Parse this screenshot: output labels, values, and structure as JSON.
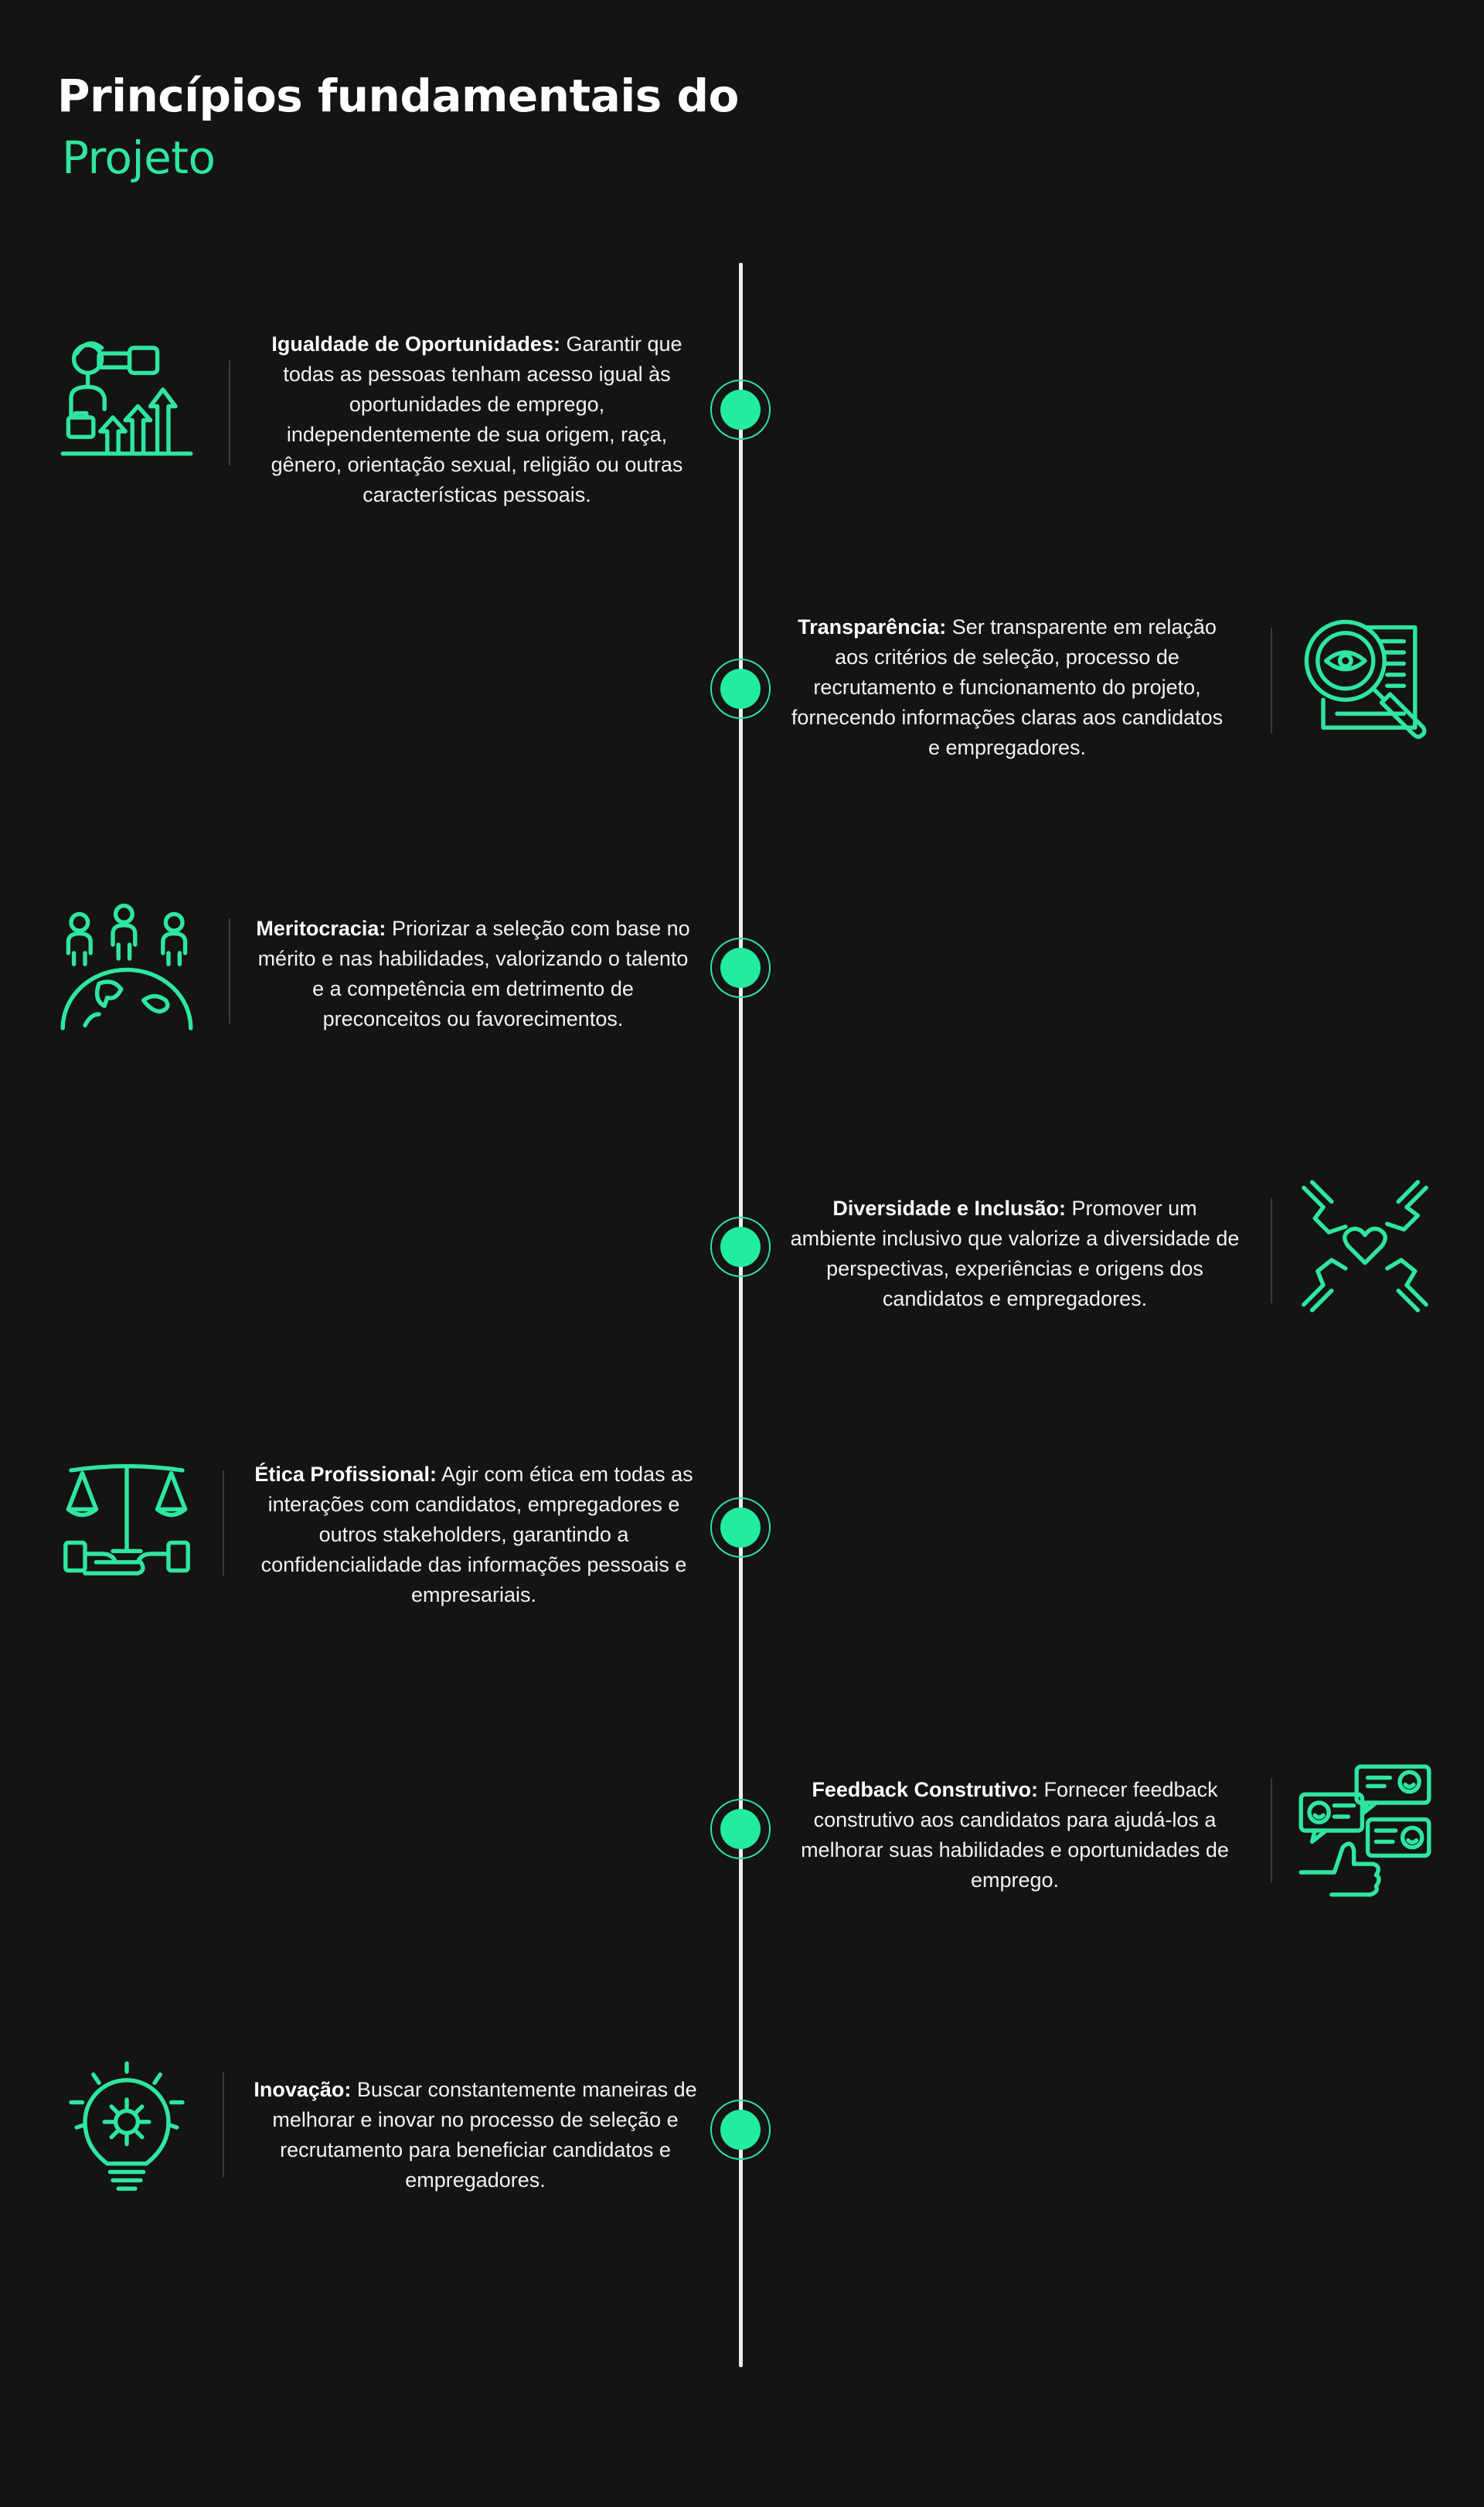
{
  "header": {
    "title_line1": "Princípios fundamentais do",
    "title_line2": "Projeto"
  },
  "colors": {
    "accent": "#2fe6a0",
    "background": "#141414",
    "line": "#ececec"
  },
  "principles": [
    {
      "name": "Igualdade de Oportunidades:",
      "description": "Garantir que todas as pessoas tenham acesso igual às oportunidades de emprego, independentemente de sua origem, raça, gênero, orientação sexual, religião ou outras características pessoais.",
      "icon": "telescope-growth-icon",
      "side": "left"
    },
    {
      "name": "Transparência:",
      "description": "Ser transparente em relação aos critérios de seleção, processo de recrutamento e funcionamento do projeto, fornecendo informações claras aos candidatos e empregadores.",
      "icon": "magnifier-eye-icon",
      "side": "right"
    },
    {
      "name": "Meritocracia:",
      "description": "Priorizar a seleção com base no mérito e nas habilidades, valorizando o talento e a competência em detrimento de preconceitos ou favorecimentos.",
      "icon": "people-globe-icon",
      "side": "left"
    },
    {
      "name": "Diversidade e Inclusão:",
      "description": "Promover um ambiente inclusivo que valorize a diversidade de perspectivas, experiências e origens dos candidatos e empregadores.",
      "icon": "hands-heart-icon",
      "side": "right"
    },
    {
      "name": "Ética Profissional:",
      "description": "Agir com ética em todas as interações com candidatos, empregadores e outros stakeholders, garantindo a confidencialidade das informações pessoais e empresariais.",
      "icon": "scale-hands-icon",
      "side": "left"
    },
    {
      "name": "Feedback Construtivo:",
      "description": "Fornecer feedback construtivo aos candidatos para ajudá-los a melhorar suas habilidades e oportunidades de emprego.",
      "icon": "feedback-chat-icon",
      "side": "right"
    },
    {
      "name": "Inovação:",
      "description": "Buscar constantemente maneiras de melhorar e inovar no processo de seleção e recrutamento para beneficiar candidatos e empregadores.",
      "icon": "lightbulb-gear-icon",
      "side": "left"
    }
  ]
}
